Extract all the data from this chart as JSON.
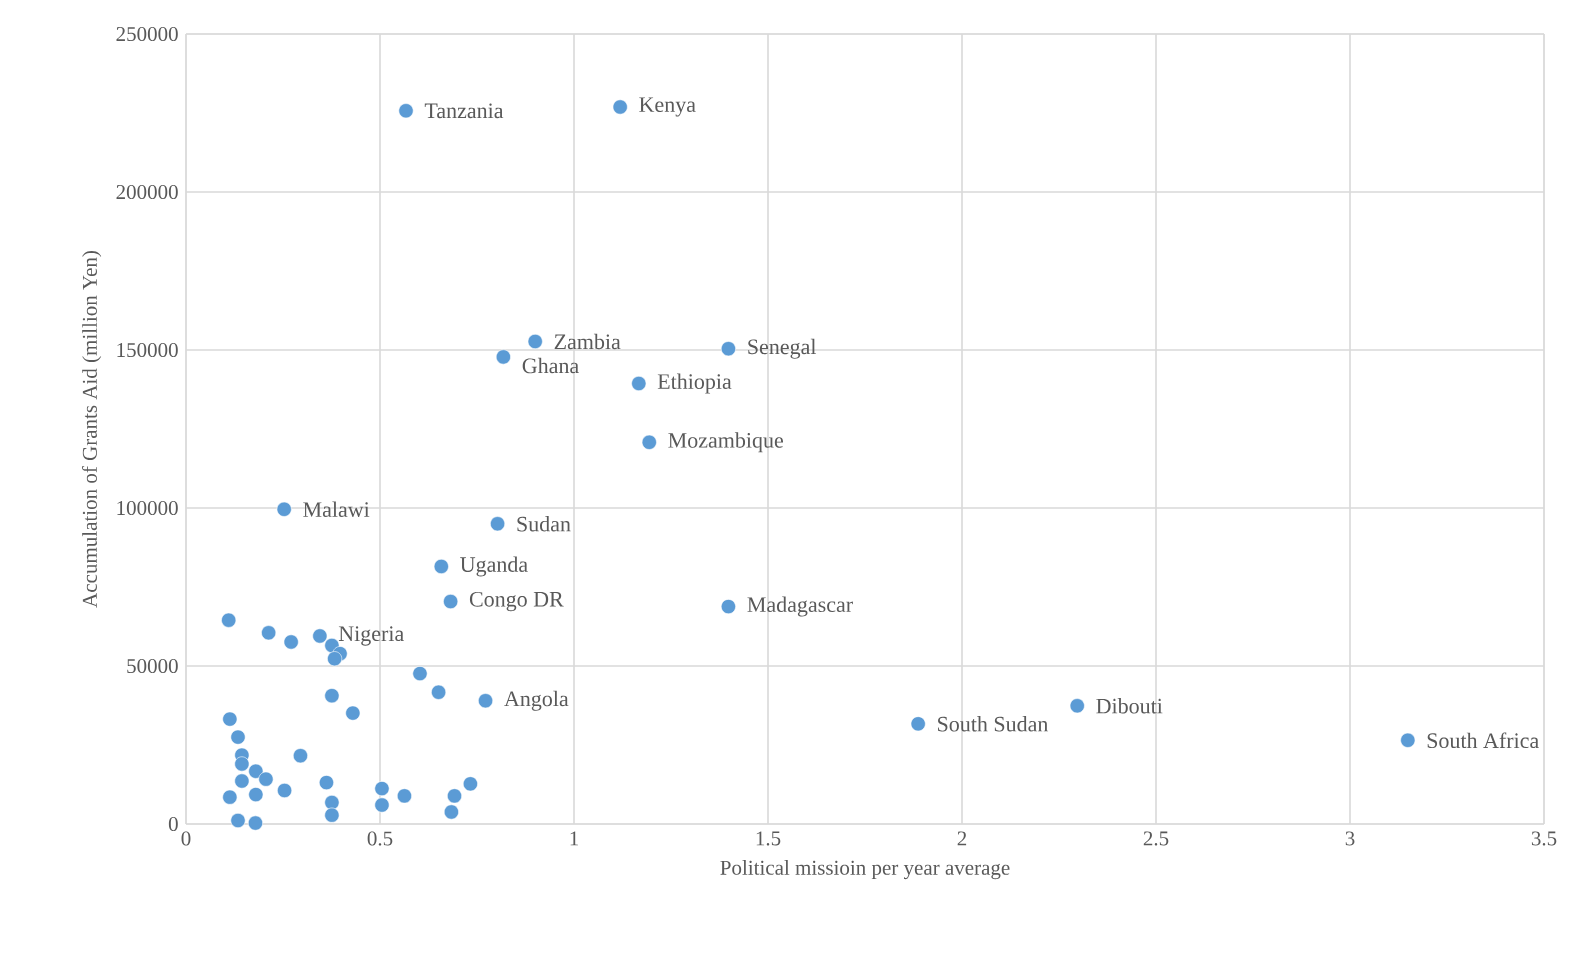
{
  "chart_data": {
    "type": "scatter",
    "xlabel": "Political missioin per year average",
    "ylabel": "Accumulation of Grants Aid (million Yen)",
    "xlim": [
      0,
      3.5
    ],
    "ylim": [
      0,
      250000
    ],
    "xticks": [
      0,
      0.5,
      1,
      1.5,
      2,
      2.5,
      3,
      3.5
    ],
    "yticks": [
      0,
      50000,
      100000,
      150000,
      200000,
      250000
    ],
    "grid": true,
    "series": [
      {
        "color": "#5b9bd5",
        "x": [
          0.567,
          1.119,
          0.9,
          0.818,
          1.398,
          1.167,
          1.194,
          0.253,
          0.803,
          0.658,
          0.682,
          1.398,
          1.887,
          2.297,
          3.149,
          0.772,
          0.345,
          0.11,
          0.213,
          0.271,
          0.376,
          0.397,
          0.383,
          0.603,
          0.651,
          0.376,
          0.43,
          0.113,
          0.134,
          0.144,
          0.144,
          0.295,
          0.18,
          0.206,
          0.144,
          0.362,
          0.733,
          0.505,
          0.254,
          0.563,
          0.692,
          0.113,
          0.18,
          0.376,
          0.505,
          0.376,
          0.684,
          0.134,
          0.179
        ],
        "values": [
          225700,
          226900,
          152700,
          147800,
          150400,
          139400,
          120800,
          99600,
          95000,
          81500,
          70400,
          68800,
          31700,
          37400,
          26500,
          39000,
          59500,
          64500,
          60500,
          57600,
          56500,
          53900,
          52300,
          47600,
          41700,
          40600,
          35100,
          33200,
          27500,
          21800,
          19000,
          21600,
          16700,
          14200,
          13600,
          13100,
          12700,
          11200,
          10600,
          8900,
          8900,
          8500,
          9300,
          6800,
          6000,
          2800,
          3800,
          1100,
          300
        ]
      }
    ],
    "annotations": [
      {
        "text": "Tanzania",
        "x": 0.567,
        "y": 225700
      },
      {
        "text": "Kenya",
        "x": 1.119,
        "y": 226900
      },
      {
        "text": "Zambia",
        "x": 0.9,
        "y": 152700
      },
      {
        "text": "Ghana",
        "x": 0.818,
        "y": 147800
      },
      {
        "text": "Senegal",
        "x": 1.398,
        "y": 150400
      },
      {
        "text": "Ethiopia",
        "x": 1.167,
        "y": 139400
      },
      {
        "text": "Mozambique",
        "x": 1.194,
        "y": 120800
      },
      {
        "text": "Malawi",
        "x": 0.253,
        "y": 99600
      },
      {
        "text": "Sudan",
        "x": 0.803,
        "y": 95000
      },
      {
        "text": "Uganda",
        "x": 0.658,
        "y": 81500
      },
      {
        "text": "Congo DR",
        "x": 0.682,
        "y": 70400
      },
      {
        "text": "Madagascar",
        "x": 1.398,
        "y": 68800
      },
      {
        "text": "South Sudan",
        "x": 1.887,
        "y": 31700
      },
      {
        "text": "Dibouti",
        "x": 2.297,
        "y": 37400
      },
      {
        "text": "South Africa",
        "x": 3.149,
        "y": 26500
      },
      {
        "text": "Angola",
        "x": 0.772,
        "y": 39000
      },
      {
        "text": "Nigeria",
        "x": 0.345,
        "y": 59500
      }
    ]
  }
}
